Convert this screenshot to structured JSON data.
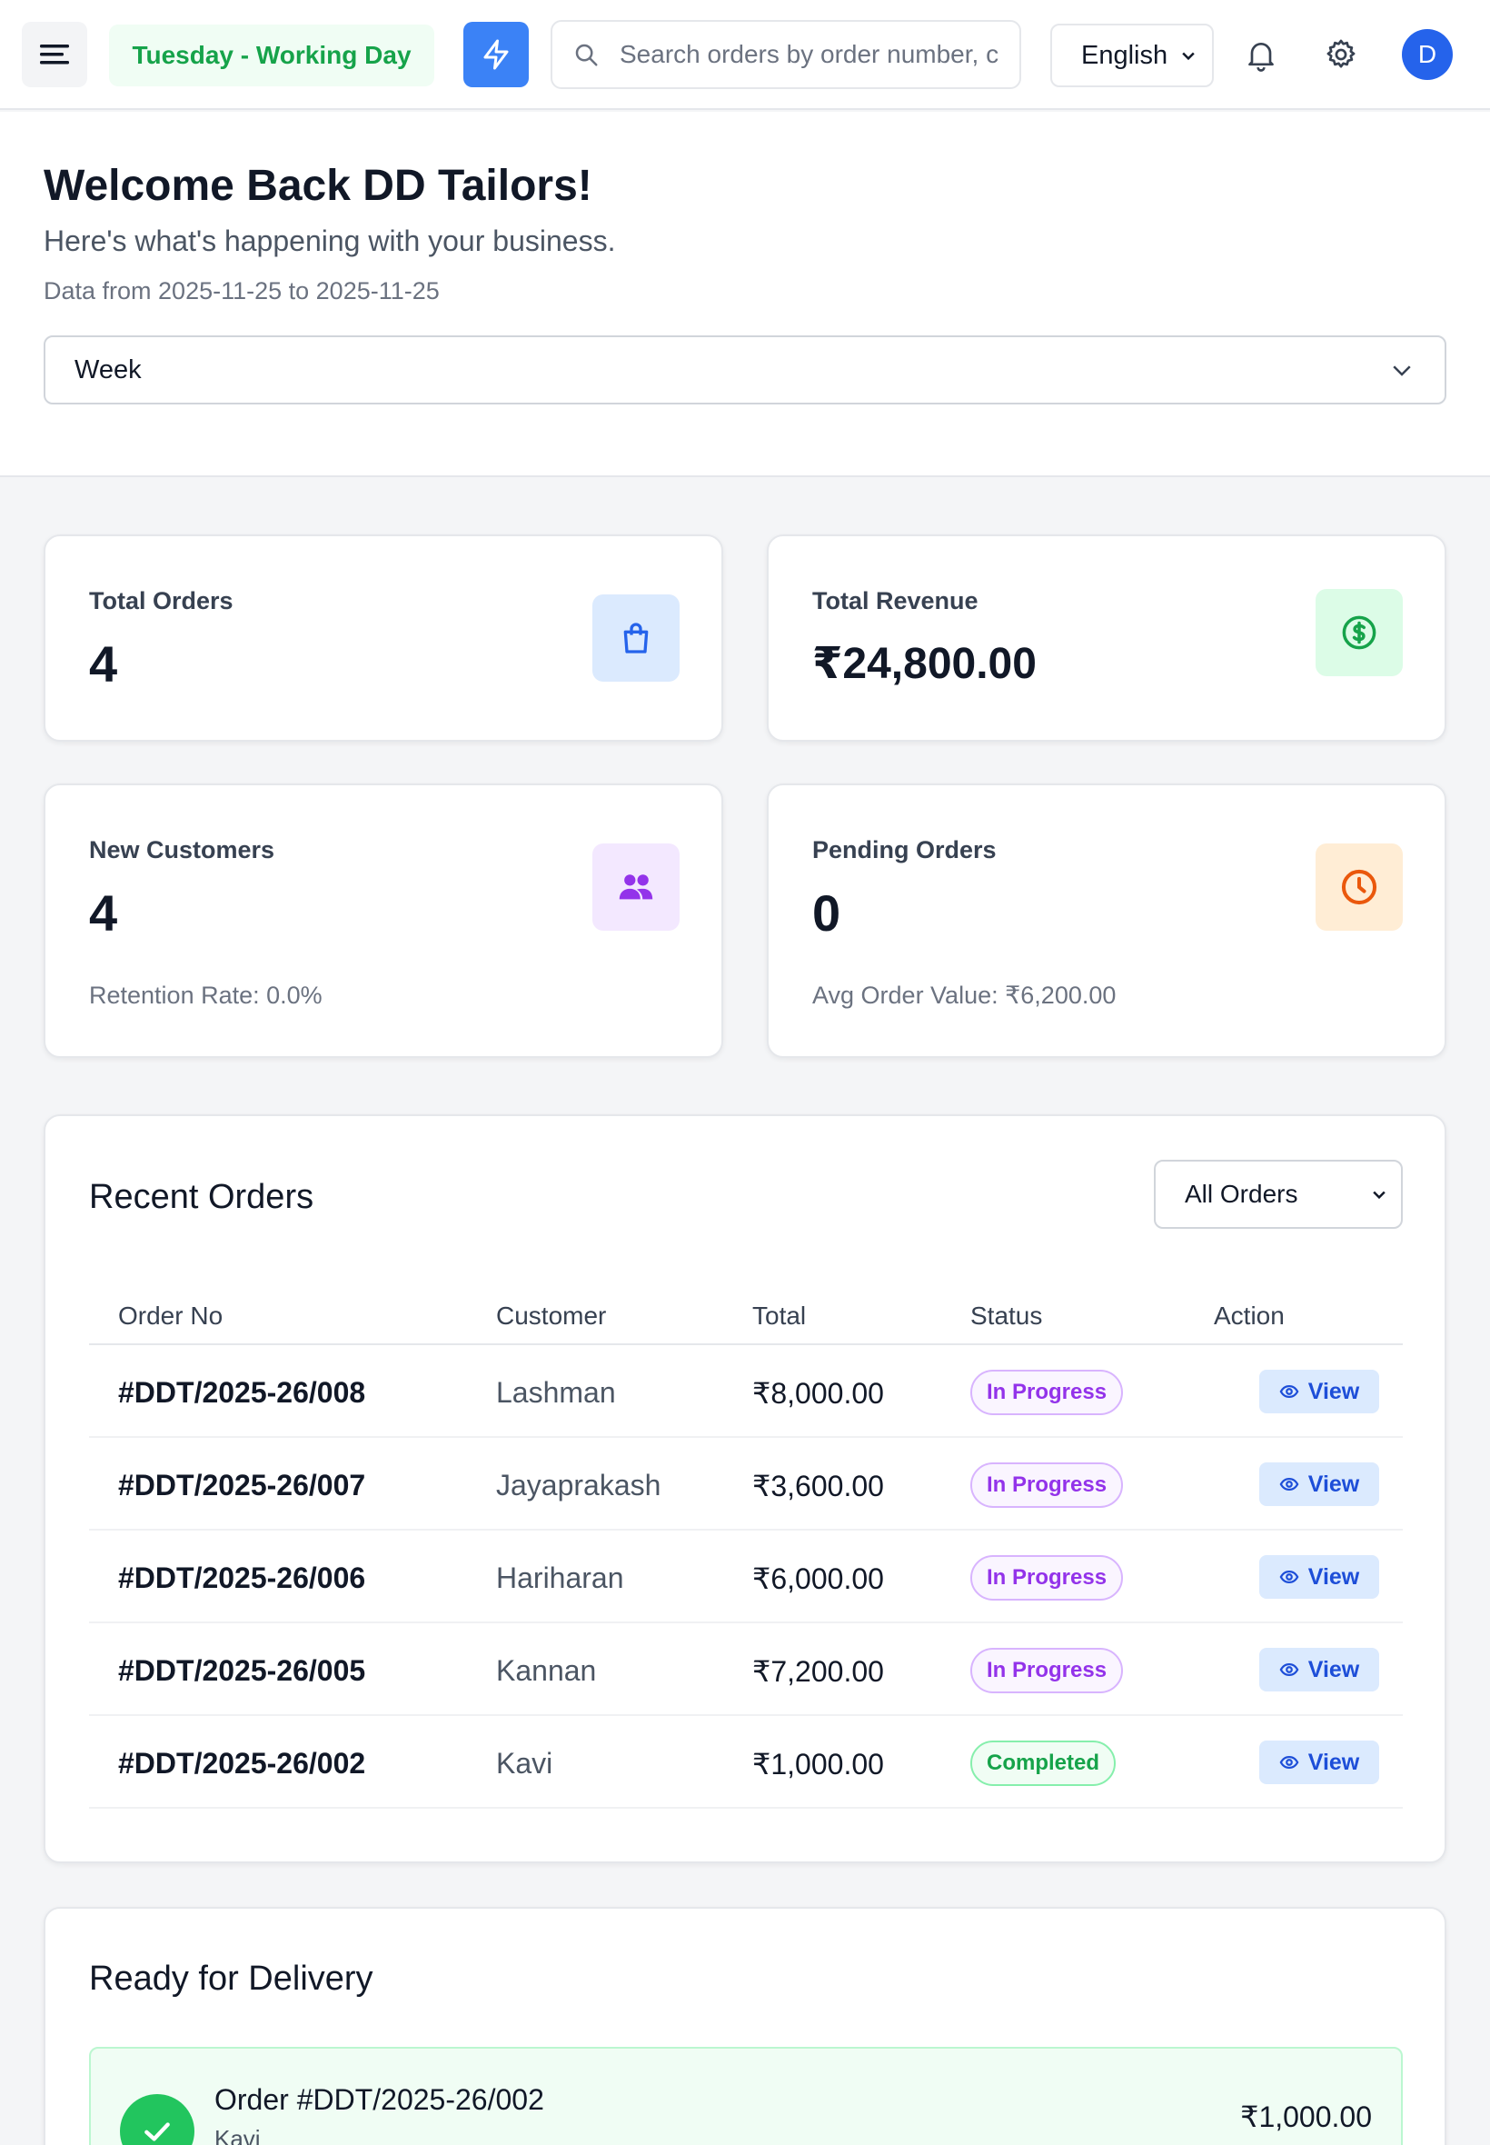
{
  "header": {
    "working_day": "Tuesday - Working Day",
    "search_placeholder": "Search orders by order number, c",
    "language": "English",
    "avatar_initial": "D",
    "icons": {
      "menu": "menu-icon",
      "bolt": "bolt-icon",
      "search": "search-icon",
      "bell": "bell-icon",
      "settings": "gear-icon"
    },
    "accent_color": "#3b82f6"
  },
  "welcome": {
    "title": "Welcome Back DD Tailors!",
    "subtitle": "Here's what's happening with your business.",
    "date_range": "Data from 2025-11-25 to 2025-11-25",
    "period": "Week"
  },
  "stats": {
    "total_orders": {
      "label": "Total Orders",
      "value": "4",
      "icon": "shopping-bag-icon",
      "color": "#2563eb"
    },
    "total_revenue": {
      "label": "Total Revenue",
      "value": "₹24,800.00",
      "icon": "dollar-circle-icon",
      "color": "#16a34a"
    },
    "new_customers": {
      "label": "New Customers",
      "value": "4",
      "note": "Retention Rate: 0.0%",
      "icon": "users-icon",
      "color": "#9333ea"
    },
    "pending_orders": {
      "label": "Pending Orders",
      "value": "0",
      "note": "Avg Order Value: ₹6,200.00",
      "icon": "clock-icon",
      "color": "#ea580c"
    }
  },
  "recent_orders": {
    "title": "Recent Orders",
    "filter": "All Orders",
    "columns": [
      "Order No",
      "Customer",
      "Total",
      "Status",
      "Action"
    ],
    "rows": [
      {
        "order_no": "#DDT/2025-26/008",
        "customer": "Lashman",
        "total": "₹8,000.00",
        "status": "In Progress",
        "action": "View"
      },
      {
        "order_no": "#DDT/2025-26/007",
        "customer": "Jayaprakash",
        "total": "₹3,600.00",
        "status": "In Progress",
        "action": "View"
      },
      {
        "order_no": "#DDT/2025-26/006",
        "customer": "Hariharan",
        "total": "₹6,000.00",
        "status": "In Progress",
        "action": "View"
      },
      {
        "order_no": "#DDT/2025-26/005",
        "customer": "Kannan",
        "total": "₹7,200.00",
        "status": "In Progress",
        "action": "View"
      },
      {
        "order_no": "#DDT/2025-26/002",
        "customer": "Kavi",
        "total": "₹1,000.00",
        "status": "Completed",
        "action": "View"
      }
    ]
  },
  "ready_for_delivery": {
    "title": "Ready for Delivery",
    "items": [
      {
        "order": "Order #DDT/2025-26/002",
        "customer": "Kavi",
        "amount": "₹1,000.00"
      }
    ]
  }
}
